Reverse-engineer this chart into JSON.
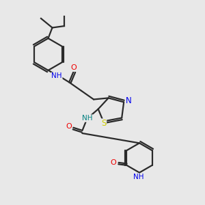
{
  "background_color": "#e8e8e8",
  "bond_color": "#2a2a2a",
  "atom_colors": {
    "N": "#0000ee",
    "O": "#ee0000",
    "S": "#cccc00",
    "NH_teal": "#008080",
    "C": "#2a2a2a"
  },
  "figsize": [
    3.0,
    3.0
  ],
  "dpi": 100
}
